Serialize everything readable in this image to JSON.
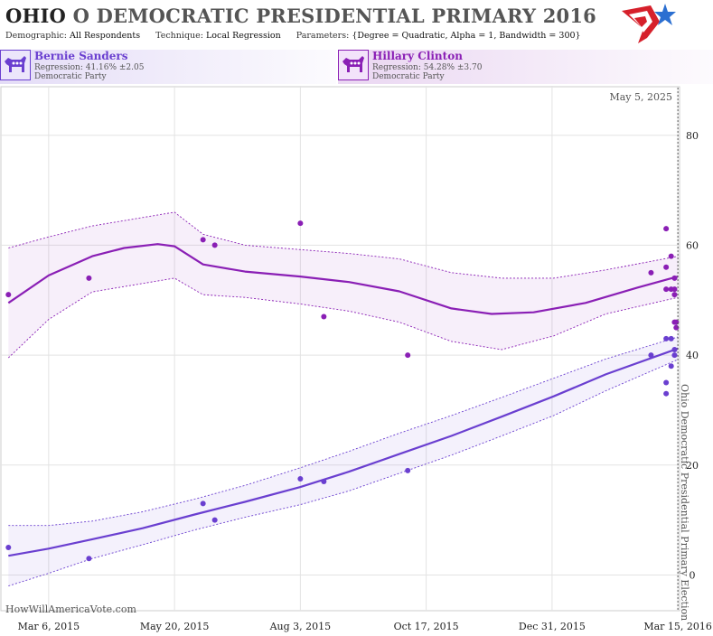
{
  "header": {
    "state": "OHIO",
    "title": " O DEMOCRATIC PRESIDENTIAL PRIMARY 2016",
    "demographic_label": "Demographic:",
    "demographic": "All Respondents",
    "technique_label": "Technique:",
    "technique": "Local Regression",
    "parameters_label": "Parameters:",
    "parameters": "{Degree = Quadratic, Alpha = 1, Bandwidth = 300}"
  },
  "candidates": [
    {
      "name": "Bernie Sanders",
      "regression": "Regression: 41.16% ±2.05",
      "party": "Democratic Party",
      "color": "#6a3fd0",
      "icon": "democratic-donkey-icon"
    },
    {
      "name": "Hillary Clinton",
      "regression": "Regression: 54.28% ±3.70",
      "party": "Democratic Party",
      "color": "#8a1fb5",
      "icon": "democratic-donkey-icon"
    }
  ],
  "logo": {
    "icon": "star-flag-logo-icon",
    "colors": [
      "#d6202b",
      "#2b6fd1"
    ]
  },
  "watermark": "HowWillAmericaVote.com",
  "chart_data": {
    "type": "scatter",
    "x_axis": {
      "ticks": [
        "Mar 6, 2015",
        "May 20, 2015",
        "Aug 3, 2015",
        "Oct 17, 2015",
        "Dec 31, 2015",
        "Mar 15, 2016"
      ],
      "tick_dates": [
        "2015-03-06",
        "2015-05-20",
        "2015-08-03",
        "2015-10-17",
        "2015-12-31",
        "2016-03-15"
      ],
      "range": [
        "2015-02-05",
        "2016-03-16"
      ]
    },
    "y_axis": {
      "ticks": [
        0,
        20,
        40,
        60,
        80
      ],
      "range": [
        -6.5,
        89
      ]
    },
    "grid": true,
    "annotations": {
      "today_label": "May 5, 2025",
      "event_label": "Ohio Democratic Presidential Primary Election",
      "event_date": "2016-03-15"
    },
    "series": [
      {
        "name": "Hillary Clinton",
        "color": "#8a1fb5",
        "points": [
          [
            "2015-02-10",
            51
          ],
          [
            "2015-03-30",
            54
          ],
          [
            "2015-06-06",
            61
          ],
          [
            "2015-06-13",
            60
          ],
          [
            "2015-08-03",
            64
          ],
          [
            "2015-08-17",
            47
          ],
          [
            "2015-10-06",
            40
          ],
          [
            "2016-02-28",
            55
          ],
          [
            "2016-03-08",
            63
          ],
          [
            "2016-03-08",
            56
          ],
          [
            "2016-03-08",
            52
          ],
          [
            "2016-03-11",
            58
          ],
          [
            "2016-03-11",
            52
          ],
          [
            "2016-03-13",
            52
          ],
          [
            "2016-03-13",
            51
          ],
          [
            "2016-03-13",
            54
          ],
          [
            "2016-03-13",
            46
          ],
          [
            "2016-03-14",
            46
          ],
          [
            "2016-03-14",
            45
          ]
        ],
        "trend": [
          [
            "2015-02-10",
            49.5
          ],
          [
            "2015-03-06",
            54.5
          ],
          [
            "2015-04-01",
            58.0
          ],
          [
            "2015-04-20",
            59.5
          ],
          [
            "2015-05-10",
            60.2
          ],
          [
            "2015-05-20",
            59.8
          ],
          [
            "2015-06-06",
            56.5
          ],
          [
            "2015-07-01",
            55.2
          ],
          [
            "2015-08-03",
            54.3
          ],
          [
            "2015-09-01",
            53.3
          ],
          [
            "2015-10-01",
            51.6
          ],
          [
            "2015-11-01",
            48.5
          ],
          [
            "2015-11-25",
            47.5
          ],
          [
            "2015-12-20",
            47.8
          ],
          [
            "2016-01-20",
            49.5
          ],
          [
            "2016-02-20",
            52.3
          ],
          [
            "2016-03-15",
            54.3
          ]
        ],
        "band_upper": [
          [
            "2015-02-10",
            59.5
          ],
          [
            "2015-03-06",
            61.5
          ],
          [
            "2015-04-01",
            63.5
          ],
          [
            "2015-05-20",
            66.0
          ],
          [
            "2015-06-06",
            62.0
          ],
          [
            "2015-07-01",
            60.0
          ],
          [
            "2015-08-03",
            59.2
          ],
          [
            "2015-09-01",
            58.5
          ],
          [
            "2015-10-01",
            57.5
          ],
          [
            "2015-11-01",
            55.0
          ],
          [
            "2015-12-01",
            54.0
          ],
          [
            "2016-01-01",
            54.0
          ],
          [
            "2016-02-01",
            55.5
          ],
          [
            "2016-03-15",
            58.0
          ]
        ],
        "band_lower": [
          [
            "2015-02-10",
            39.5
          ],
          [
            "2015-03-06",
            46.5
          ],
          [
            "2015-04-01",
            51.5
          ],
          [
            "2015-05-20",
            54.0
          ],
          [
            "2015-06-06",
            51.0
          ],
          [
            "2015-07-01",
            50.5
          ],
          [
            "2015-08-03",
            49.3
          ],
          [
            "2015-09-01",
            48.0
          ],
          [
            "2015-10-01",
            46.0
          ],
          [
            "2015-11-01",
            42.5
          ],
          [
            "2015-12-01",
            41.0
          ],
          [
            "2016-01-01",
            43.5
          ],
          [
            "2016-02-01",
            47.5
          ],
          [
            "2016-03-15",
            50.5
          ]
        ]
      },
      {
        "name": "Bernie Sanders",
        "color": "#6a3fd0",
        "points": [
          [
            "2015-02-10",
            5
          ],
          [
            "2015-03-30",
            3
          ],
          [
            "2015-06-06",
            13
          ],
          [
            "2015-06-13",
            10
          ],
          [
            "2015-08-03",
            17.5
          ],
          [
            "2015-08-17",
            17
          ],
          [
            "2015-10-06",
            19
          ],
          [
            "2016-02-28",
            40
          ],
          [
            "2016-03-08",
            43
          ],
          [
            "2016-03-08",
            35
          ],
          [
            "2016-03-08",
            33
          ],
          [
            "2016-03-11",
            43
          ],
          [
            "2016-03-11",
            38
          ],
          [
            "2016-03-13",
            41
          ],
          [
            "2016-03-13",
            40
          ]
        ],
        "trend": [
          [
            "2015-02-10",
            3.5
          ],
          [
            "2015-03-06",
            4.8
          ],
          [
            "2015-04-01",
            6.5
          ],
          [
            "2015-05-01",
            8.5
          ],
          [
            "2015-06-01",
            11.0
          ],
          [
            "2015-07-01",
            13.3
          ],
          [
            "2015-08-03",
            16.0
          ],
          [
            "2015-09-01",
            18.8
          ],
          [
            "2015-10-01",
            22.0
          ],
          [
            "2015-11-01",
            25.3
          ],
          [
            "2015-12-01",
            28.8
          ],
          [
            "2016-01-01",
            32.5
          ],
          [
            "2016-02-01",
            36.5
          ],
          [
            "2016-03-15",
            41.2
          ]
        ],
        "band_upper": [
          [
            "2015-02-10",
            9.0
          ],
          [
            "2015-03-06",
            9.0
          ],
          [
            "2015-04-01",
            9.8
          ],
          [
            "2015-05-01",
            11.5
          ],
          [
            "2015-06-01",
            13.8
          ],
          [
            "2015-07-01",
            16.3
          ],
          [
            "2015-08-03",
            19.5
          ],
          [
            "2015-09-01",
            22.5
          ],
          [
            "2015-10-01",
            25.8
          ],
          [
            "2015-11-01",
            29.0
          ],
          [
            "2015-12-01",
            32.3
          ],
          [
            "2016-01-01",
            35.8
          ],
          [
            "2016-02-01",
            39.3
          ],
          [
            "2016-03-15",
            43.3
          ]
        ],
        "band_lower": [
          [
            "2015-02-10",
            -2.0
          ],
          [
            "2015-03-06",
            0.3
          ],
          [
            "2015-04-01",
            3.0
          ],
          [
            "2015-05-01",
            5.5
          ],
          [
            "2015-06-01",
            8.2
          ],
          [
            "2015-07-01",
            10.5
          ],
          [
            "2015-08-03",
            12.8
          ],
          [
            "2015-09-01",
            15.3
          ],
          [
            "2015-10-01",
            18.5
          ],
          [
            "2015-11-01",
            21.8
          ],
          [
            "2015-12-01",
            25.3
          ],
          [
            "2016-01-01",
            29.0
          ],
          [
            "2016-02-01",
            33.5
          ],
          [
            "2016-03-15",
            39.2
          ]
        ]
      }
    ]
  }
}
